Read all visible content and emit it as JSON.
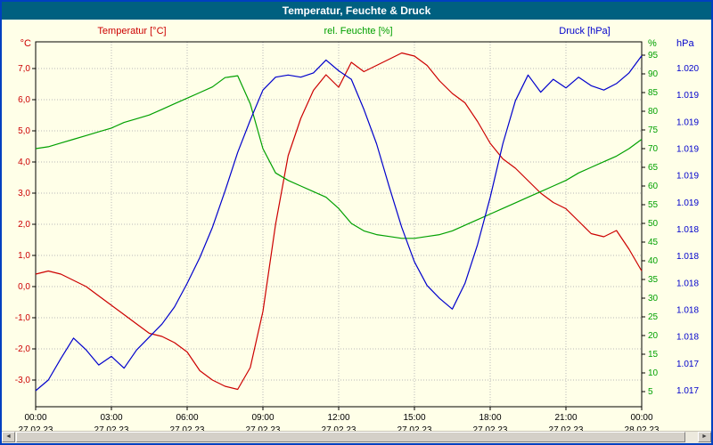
{
  "window": {
    "title": "Temperatur, Feuchte & Druck"
  },
  "header": {
    "temp_label": "Temperatur [°C]",
    "humidity_label": "rel. Feuchte [%]",
    "pressure_label": "Druck [hPa]"
  },
  "axis_units": {
    "temp": "°C",
    "humidity": "%",
    "pressure": "hPa"
  },
  "colors": {
    "temp": "#cc0000",
    "humidity": "#00a000",
    "pressure": "#0000cc",
    "background": "#ffffe8",
    "frame_border": "#0040c0",
    "titlebar_bg": "#006080",
    "titlebar_text": "#ffffff",
    "grid": "#b8b8b8",
    "plot_border": "#000000"
  },
  "scrollbar": {
    "left_arrow": "◄",
    "right_arrow": "►"
  },
  "chart_data": {
    "type": "line",
    "title": "Temperatur, Feuchte & Druck",
    "grid": true,
    "legend_position": "top",
    "x_axis": {
      "tick_labels": [
        "00:00",
        "03:00",
        "06:00",
        "09:00",
        "12:00",
        "15:00",
        "18:00",
        "21:00",
        "00:00"
      ],
      "tick_hours": [
        0,
        3,
        6,
        9,
        12,
        15,
        18,
        21,
        24
      ],
      "date_labels": [
        "27.02.23",
        "27.02.23",
        "27.02.23",
        "27.02.23",
        "27.02.23",
        "27.02.23",
        "27.02.23",
        "27.02.23",
        "28.02.23"
      ],
      "grid_hours": [
        3,
        6,
        9,
        12,
        15,
        18,
        21
      ],
      "range_hours": [
        0,
        24
      ]
    },
    "axes": {
      "temp": {
        "label": "Temperatur [°C]",
        "unit": "°C",
        "side": "left",
        "min": -3.857,
        "max": 7.857,
        "tick_values": [
          7,
          6,
          5,
          4,
          3,
          2,
          1,
          0,
          -1,
          -2,
          -3
        ],
        "tick_labels": [
          "7,0",
          "6,0",
          "5,0",
          "4,0",
          "3,0",
          "2,0",
          "1,0",
          "0,0",
          "-1,0",
          "-2,0",
          "-3,0"
        ]
      },
      "humidity": {
        "label": "rel. Feuchte [%]",
        "unit": "%",
        "side": "right",
        "min": 0.95,
        "max": 98.57,
        "tick_values": [
          95,
          90,
          85,
          80,
          75,
          70,
          65,
          60,
          55,
          50,
          45,
          40,
          35,
          30,
          25,
          20,
          15,
          10,
          5
        ],
        "tick_labels": [
          "95",
          "90",
          "85",
          "80",
          "75",
          "70",
          "65",
          "60",
          "55",
          "50",
          "45",
          "40",
          "35",
          "30",
          "25",
          "20",
          "15",
          "10",
          "5"
        ]
      },
      "pressure": {
        "label": "Druck [hPa]",
        "unit": "hPa",
        "side": "far-right",
        "min": 1.016851,
        "max": 1.020249,
        "tick_values": [
          1.02,
          1.01975,
          1.0195,
          1.01925,
          1.019,
          1.01875,
          1.0185,
          1.01825,
          1.018,
          1.01775,
          1.0175,
          1.01725,
          1.017
        ],
        "tick_labels": [
          "1.020",
          "1.019",
          "1.019",
          "1.019",
          "1.019",
          "1.019",
          "1.018",
          "1.018",
          "1.018",
          "1.018",
          "1.018",
          "1.017",
          "1.017"
        ]
      }
    },
    "x_hours": [
      0,
      0.5,
      1,
      1.5,
      2,
      2.5,
      3,
      3.5,
      4,
      4.5,
      5,
      5.5,
      6,
      6.5,
      7,
      7.5,
      8,
      8.5,
      9,
      9.5,
      10,
      10.5,
      11,
      11.5,
      12,
      12.5,
      13,
      13.5,
      14,
      14.5,
      15,
      15.5,
      16,
      16.5,
      17,
      17.5,
      18,
      18.5,
      19,
      19.5,
      20,
      20.5,
      21,
      21.5,
      22,
      22.5,
      23,
      23.5,
      24
    ],
    "series": [
      {
        "name": "Temperatur",
        "unit": "°C",
        "axis": "temp",
        "color": "#cc0000",
        "values": [
          0.4,
          0.5,
          0.4,
          0.2,
          0.0,
          -0.3,
          -0.6,
          -0.9,
          -1.2,
          -1.5,
          -1.6,
          -1.8,
          -2.1,
          -2.7,
          -3.0,
          -3.2,
          -3.3,
          -2.6,
          -0.8,
          2.0,
          4.2,
          5.4,
          6.3,
          6.8,
          6.4,
          7.2,
          6.9,
          7.1,
          7.3,
          7.5,
          7.4,
          7.1,
          6.6,
          6.2,
          5.9,
          5.3,
          4.6,
          4.1,
          3.8,
          3.4,
          3.0,
          2.7,
          2.5,
          2.1,
          1.7,
          1.6,
          1.8,
          1.2,
          0.5
        ]
      },
      {
        "name": "rel. Feuchte",
        "unit": "%",
        "axis": "humidity",
        "color": "#00a000",
        "values": [
          70,
          70.5,
          71.5,
          72.5,
          73.5,
          74.5,
          75.5,
          77,
          78,
          79,
          80.5,
          82,
          83.5,
          85,
          86.5,
          89,
          89.5,
          82,
          70,
          63.5,
          61.5,
          60,
          58.5,
          57,
          54,
          50,
          48,
          47,
          46.5,
          46,
          46,
          46.5,
          47,
          48,
          49.5,
          51,
          52.5,
          54,
          55.5,
          57,
          58.5,
          60,
          61.5,
          63.5,
          65,
          66.5,
          68,
          70,
          72.5
        ]
      },
      {
        "name": "Druck",
        "unit": "hPa",
        "axis": "pressure",
        "color": "#0000cc",
        "values": [
          1.017,
          1.0171,
          1.0173,
          1.01749,
          1.01738,
          1.01724,
          1.01732,
          1.01721,
          1.01738,
          1.0175,
          1.01762,
          1.01778,
          1.018,
          1.01824,
          1.01852,
          1.01886,
          1.01922,
          1.01952,
          1.0198,
          1.01992,
          1.01994,
          1.01992,
          1.01996,
          1.02008,
          1.01998,
          1.0199,
          1.01962,
          1.0193,
          1.0189,
          1.01852,
          1.0182,
          1.01798,
          1.01786,
          1.01776,
          1.018,
          1.01836,
          1.0188,
          1.0193,
          1.0197,
          1.01994,
          1.01978,
          1.0199,
          1.01982,
          1.01992,
          1.01984,
          1.0198,
          1.01986,
          1.01996,
          1.02012
        ]
      }
    ]
  }
}
